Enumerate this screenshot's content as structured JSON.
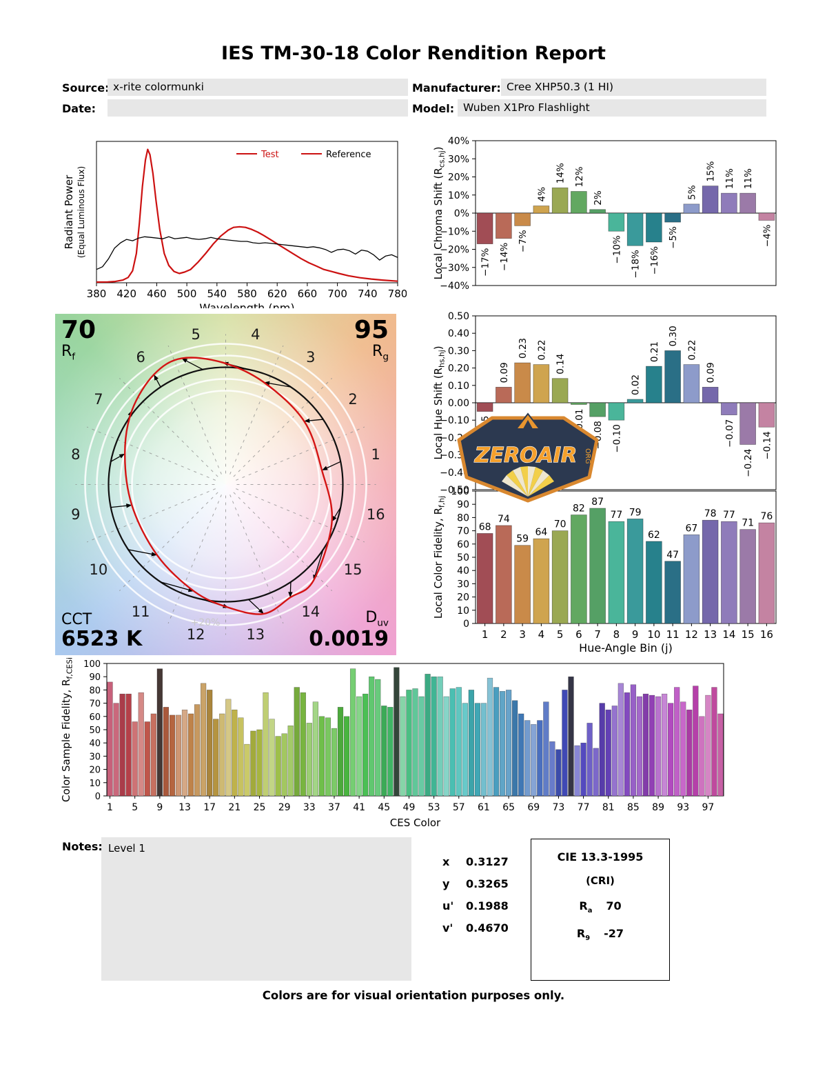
{
  "title": "IES TM-30-18 Color Rendition Report",
  "header": {
    "fields": [
      {
        "label": "Source:",
        "value": "x-rite colormunki"
      },
      {
        "label": "Manufacturer:",
        "value": "Cree XHP50.3 (1 HI)"
      },
      {
        "label": "Date:",
        "value": ""
      },
      {
        "label": "Model:",
        "value": "Wuben X1Pro Flashlight"
      }
    ]
  },
  "bin_colors": [
    "#a14d55",
    "#b96a58",
    "#c98a49",
    "#cfa44f",
    "#9aa853",
    "#62a861",
    "#55a065",
    "#4ab59a",
    "#3a9a9b",
    "#27818c",
    "#2a6f86",
    "#8d9bca",
    "#7568ab",
    "#8f7cba",
    "#9b7aa8",
    "#c483a2"
  ],
  "cvg": {
    "rf_value": "70",
    "rf_label": "R",
    "rf_sub": "f",
    "rg_value": "95",
    "rg_label": "R",
    "rg_sub": "g",
    "cct_label": "CCT",
    "cct_value": "6523 K",
    "duv_label": "D",
    "duv_sub": "uv",
    "duv_value": "0.0019",
    "pct_label": "+20%"
  },
  "logo": {
    "text": "ZEROAIR",
    "org": "ORG"
  },
  "notes": {
    "label": "Notes:",
    "value": "Level 1"
  },
  "chromaticity": [
    {
      "label": "x",
      "value": "0.3127"
    },
    {
      "label": "y",
      "value": "0.3265"
    },
    {
      "label": "u'",
      "value": "0.1988"
    },
    {
      "label": "v'",
      "value": "0.4670"
    }
  ],
  "cie": {
    "title": "CIE 13.3-1995",
    "subtitle": "(CRI)",
    "rows": [
      {
        "label": "R",
        "sub": "a",
        "value": "70"
      },
      {
        "label": "R",
        "sub": "9",
        "value": "-27"
      }
    ]
  },
  "footer": "Colors are for visual orientation purposes only.",
  "chart_data": [
    {
      "id": "spd",
      "type": "line",
      "xlabel": "Wavelength (nm)",
      "ylabel_lines": [
        "Radiant Power",
        "(Equal Luminous Flux)"
      ],
      "xlim": [
        380,
        780
      ],
      "ylim": [
        0,
        1.06
      ],
      "xticks": [
        380,
        420,
        460,
        500,
        540,
        580,
        620,
        660,
        700,
        740,
        780
      ],
      "legend": [
        {
          "label": "Test",
          "line_color": "#cc1111",
          "text_color": "#cc1111"
        },
        {
          "label": "Reference",
          "line_color": "#cc1111",
          "text_color": "#000000"
        }
      ],
      "series": [
        {
          "name": "Test",
          "color": "#cc1111",
          "width": 2.2,
          "x": [
            380,
            395,
            405,
            415,
            422,
            428,
            433,
            437,
            441,
            445,
            448,
            451,
            455,
            459,
            464,
            470,
            476,
            483,
            490,
            497,
            505,
            515,
            525,
            535,
            545,
            555,
            562,
            570,
            578,
            586,
            594,
            602,
            612,
            622,
            632,
            642,
            652,
            662,
            672,
            682,
            692,
            702,
            715,
            730,
            745,
            760,
            780
          ],
          "y": [
            0.005,
            0.006,
            0.01,
            0.02,
            0.04,
            0.09,
            0.22,
            0.45,
            0.72,
            0.92,
            1.0,
            0.96,
            0.82,
            0.62,
            0.4,
            0.22,
            0.13,
            0.085,
            0.07,
            0.08,
            0.1,
            0.155,
            0.22,
            0.29,
            0.35,
            0.395,
            0.415,
            0.42,
            0.415,
            0.4,
            0.38,
            0.355,
            0.32,
            0.285,
            0.25,
            0.215,
            0.18,
            0.15,
            0.125,
            0.1,
            0.085,
            0.07,
            0.052,
            0.038,
            0.028,
            0.02,
            0.012
          ]
        },
        {
          "name": "Reference",
          "color": "#000000",
          "width": 1.3,
          "x": [
            380,
            388,
            396,
            404,
            412,
            420,
            428,
            436,
            444,
            452,
            460,
            468,
            476,
            484,
            492,
            500,
            508,
            516,
            524,
            532,
            540,
            548,
            556,
            564,
            572,
            580,
            588,
            596,
            604,
            612,
            620,
            628,
            636,
            644,
            652,
            660,
            668,
            676,
            684,
            692,
            700,
            708,
            716,
            724,
            732,
            740,
            748,
            756,
            764,
            772,
            780
          ],
          "y": [
            0.1,
            0.12,
            0.18,
            0.26,
            0.3,
            0.325,
            0.315,
            0.335,
            0.345,
            0.34,
            0.335,
            0.33,
            0.345,
            0.33,
            0.335,
            0.34,
            0.33,
            0.325,
            0.33,
            0.34,
            0.33,
            0.325,
            0.32,
            0.315,
            0.31,
            0.31,
            0.3,
            0.295,
            0.3,
            0.295,
            0.29,
            0.285,
            0.28,
            0.275,
            0.27,
            0.265,
            0.27,
            0.262,
            0.25,
            0.228,
            0.247,
            0.252,
            0.24,
            0.215,
            0.245,
            0.237,
            0.21,
            0.17,
            0.2,
            0.21,
            0.19
          ]
        }
      ]
    },
    {
      "id": "chroma_shift",
      "type": "bar",
      "ylabel": {
        "pre": "Local Chroma Shift (R",
        "sub": "cs,hj",
        "post": ")"
      },
      "categories": [
        "1",
        "2",
        "3",
        "4",
        "5",
        "6",
        "7",
        "8",
        "9",
        "10",
        "11",
        "12",
        "13",
        "14",
        "15",
        "16"
      ],
      "values": [
        -17,
        -14,
        -7,
        4,
        14,
        12,
        2,
        -10,
        -18,
        -16,
        -5,
        5,
        15,
        11,
        11,
        -4
      ],
      "labels": [
        "−17%",
        "−14%",
        "−7%",
        "4%",
        "14%",
        "12%",
        "2%",
        "−10%",
        "−18%",
        "−16%",
        "−5%",
        "5%",
        "15%",
        "11%",
        "11%",
        "−4%"
      ],
      "ylim": [
        -40,
        40
      ],
      "yticks": [
        {
          "v": 40,
          "l": "40%"
        },
        {
          "v": 30,
          "l": "30%"
        },
        {
          "v": 20,
          "l": "20%"
        },
        {
          "v": 10,
          "l": "10%"
        },
        {
          "v": 0,
          "l": "0%"
        },
        {
          "v": -10,
          "l": "−10%"
        },
        {
          "v": -20,
          "l": "−20%"
        },
        {
          "v": -30,
          "l": "−30%"
        },
        {
          "v": -40,
          "l": "−40%"
        }
      ]
    },
    {
      "id": "hue_shift",
      "type": "bar",
      "ylabel": {
        "pre": "Local Hue Shift (R",
        "sub": "hs,hj",
        "post": ")"
      },
      "categories": [
        "1",
        "2",
        "3",
        "4",
        "5",
        "6",
        "7",
        "8",
        "9",
        "10",
        "11",
        "12",
        "13",
        "14",
        "15",
        "16"
      ],
      "values": [
        -0.05,
        0.09,
        0.23,
        0.22,
        0.14,
        -0.01,
        -0.08,
        -0.1,
        0.02,
        0.21,
        0.3,
        0.22,
        0.09,
        -0.07,
        -0.24,
        -0.14
      ],
      "labels": [
        "−0.05",
        "0.09",
        "0.23",
        "0.22",
        "0.14",
        "−0.01",
        "−0.08",
        "−0.10",
        "0.02",
        "0.21",
        "0.30",
        "0.22",
        "0.09",
        "−0.07",
        "−0.24",
        "−0.14"
      ],
      "ylim": [
        -0.5,
        0.5
      ],
      "yticks": [
        {
          "v": 0.5,
          "l": "0.50"
        },
        {
          "v": 0.4,
          "l": "0.40"
        },
        {
          "v": 0.3,
          "l": "0.30"
        },
        {
          "v": 0.2,
          "l": "0.20"
        },
        {
          "v": 0.1,
          "l": "0.10"
        },
        {
          "v": 0,
          "l": "0.00"
        },
        {
          "v": -0.1,
          "l": "−0.10"
        },
        {
          "v": -0.2,
          "l": "−0.20"
        },
        {
          "v": -0.3,
          "l": "−0.30"
        },
        {
          "v": -0.4,
          "l": "−0.40"
        },
        {
          "v": -0.5,
          "l": "−0.50"
        }
      ]
    },
    {
      "id": "local_fidelity",
      "type": "bar",
      "xlabel": "Hue-Angle Bin (j)",
      "ylabel": {
        "pre": "Local Color Fidelity, R",
        "sub": "f,hj",
        "post": ""
      },
      "categories": [
        "1",
        "2",
        "3",
        "4",
        "5",
        "6",
        "7",
        "8",
        "9",
        "10",
        "11",
        "12",
        "13",
        "14",
        "15",
        "16"
      ],
      "values": [
        68,
        74,
        59,
        64,
        70,
        82,
        87,
        77,
        79,
        62,
        47,
        67,
        78,
        77,
        71,
        76
      ],
      "labels": [
        "68",
        "74",
        "59",
        "64",
        "70",
        "82",
        "87",
        "77",
        "79",
        "62",
        "47",
        "67",
        "78",
        "77",
        "71",
        "76"
      ],
      "ylim": [
        0,
        100
      ],
      "yticks": [
        {
          "v": 0,
          "l": "0"
        },
        {
          "v": 10,
          "l": "10"
        },
        {
          "v": 20,
          "l": "20"
        },
        {
          "v": 30,
          "l": "30"
        },
        {
          "v": 40,
          "l": "40"
        },
        {
          "v": 50,
          "l": "50"
        },
        {
          "v": 60,
          "l": "60"
        },
        {
          "v": 70,
          "l": "70"
        },
        {
          "v": 80,
          "l": "80"
        },
        {
          "v": 90,
          "l": "90"
        },
        {
          "v": 100,
          "l": "100"
        }
      ]
    },
    {
      "id": "ces_fidelity",
      "type": "bar",
      "xlabel": "CES Color",
      "ylabel": {
        "pre": "Color Sample Fidelity, R",
        "sub": "f,CESi",
        "post": ""
      },
      "values": [
        86,
        70,
        77,
        77,
        56,
        78,
        56,
        62,
        96,
        67,
        61,
        61,
        65,
        62,
        69,
        85,
        80,
        58,
        62,
        73,
        65,
        59,
        39,
        49,
        50,
        78,
        58,
        45,
        47,
        53,
        82,
        78,
        55,
        71,
        60,
        59,
        51,
        67,
        60,
        96,
        75,
        77,
        90,
        88,
        68,
        67,
        97,
        75,
        80,
        81,
        75,
        92,
        90,
        90,
        75,
        81,
        82,
        70,
        80,
        70,
        70,
        89,
        82,
        79,
        80,
        72,
        62,
        57,
        54,
        57,
        71,
        41,
        35,
        80,
        90,
        38,
        40,
        55,
        36,
        70,
        65,
        68,
        85,
        78,
        84,
        75,
        77,
        76,
        75,
        77,
        70,
        82,
        71,
        65,
        83,
        60,
        76,
        82,
        62
      ],
      "xticks": [
        1,
        5,
        9,
        13,
        17,
        21,
        25,
        29,
        33,
        37,
        41,
        45,
        49,
        53,
        57,
        61,
        65,
        69,
        73,
        77,
        81,
        85,
        89,
        93,
        97
      ],
      "ylim": [
        0,
        100
      ],
      "yticks": [
        {
          "v": 0,
          "l": "0"
        },
        {
          "v": 10,
          "l": "10"
        },
        {
          "v": 20,
          "l": "20"
        },
        {
          "v": 30,
          "l": "30"
        },
        {
          "v": 40,
          "l": "40"
        },
        {
          "v": 50,
          "l": "50"
        },
        {
          "v": 60,
          "l": "60"
        },
        {
          "v": 70,
          "l": "70"
        },
        {
          "v": 80,
          "l": "80"
        },
        {
          "v": 90,
          "l": "90"
        },
        {
          "v": 100,
          "l": "100"
        }
      ],
      "color_ramp": {
        "start_hue": 345,
        "hue_span": 335,
        "sat": 48,
        "light_cycle": [
          52,
          63,
          45,
          58,
          68,
          48,
          60
        ],
        "dark_samples": [
          9,
          47,
          75
        ],
        "dark": {
          "sat": 14,
          "light": 24
        }
      }
    },
    {
      "id": "cvg",
      "type": "cvg",
      "rf": 70,
      "rg": 95,
      "cct_k": 6523,
      "duv": 0.0019,
      "bin_labels": [
        "1",
        "2",
        "3",
        "4",
        "5",
        "6",
        "7",
        "8",
        "9",
        "10",
        "11",
        "12",
        "13",
        "14",
        "15",
        "16"
      ],
      "guide_circles_pct": [
        80,
        90,
        110,
        120
      ],
      "pct_label": "+20%"
    }
  ]
}
